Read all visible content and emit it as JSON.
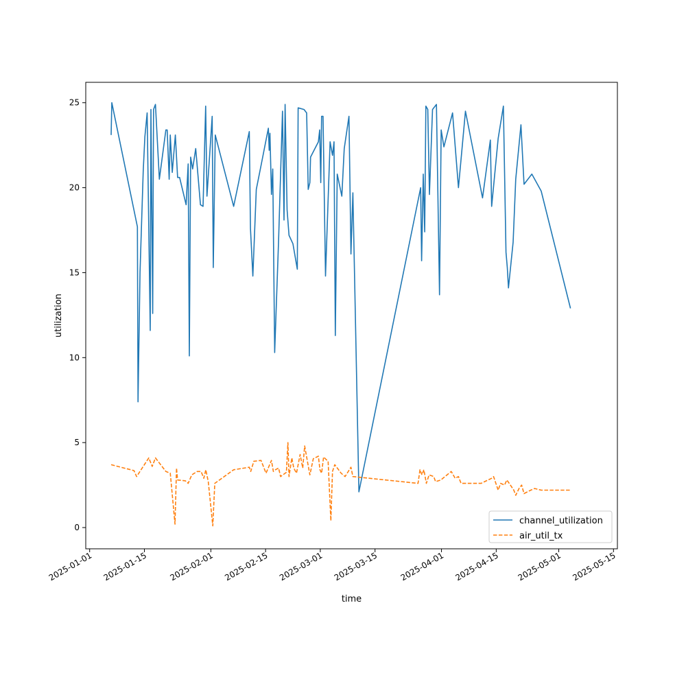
{
  "chart_data": {
    "type": "line",
    "title": "",
    "xlabel": "time",
    "ylabel": "utilization",
    "x_range": [
      "2024-12-31",
      "2025-05-16"
    ],
    "ylim": [
      -1.25,
      26.2
    ],
    "grid": false,
    "legend_position": "lower-right",
    "x_ticks": [
      "2025-01-01",
      "2025-01-15",
      "2025-02-01",
      "2025-02-15",
      "2025-03-01",
      "2025-03-15",
      "2025-04-01",
      "2025-04-15",
      "2025-05-01",
      "2025-05-15"
    ],
    "y_ticks": [
      0,
      5,
      10,
      15,
      20,
      25
    ],
    "series": [
      {
        "name": "channel_utilization",
        "color": "#1f77b4",
        "style": "solid",
        "points": [
          [
            "2025-01-06T12:00",
            23.1
          ],
          [
            "2025-01-06T16:00",
            25.0
          ],
          [
            "2025-01-13T05:00",
            17.7
          ],
          [
            "2025-01-13T09:00",
            7.4
          ],
          [
            "2025-01-13T21:00",
            15.0
          ],
          [
            "2025-01-14T17:00",
            21.0
          ],
          [
            "2025-01-15T03:00",
            23.0
          ],
          [
            "2025-01-15T17:00",
            24.4
          ],
          [
            "2025-01-16T12:00",
            11.6
          ],
          [
            "2025-01-16T16:00",
            24.6
          ],
          [
            "2025-01-17T03:00",
            12.6
          ],
          [
            "2025-01-17T08:00",
            24.6
          ],
          [
            "2025-01-17T20:00",
            24.9
          ],
          [
            "2025-01-18T20:00",
            20.5
          ],
          [
            "2025-01-20T12:00",
            23.4
          ],
          [
            "2025-01-20T20:00",
            23.4
          ],
          [
            "2025-01-21T08:00",
            20.5
          ],
          [
            "2025-01-21T15:00",
            23.1
          ],
          [
            "2025-01-22T03:00",
            20.9
          ],
          [
            "2025-01-22T22:00",
            23.1
          ],
          [
            "2025-01-23T12:00",
            20.6
          ],
          [
            "2025-01-24T00:00",
            20.6
          ],
          [
            "2025-01-25T16:00",
            19.0
          ],
          [
            "2025-01-26T05:00",
            21.4
          ],
          [
            "2025-01-26T12:00",
            10.1
          ],
          [
            "2025-01-26T20:00",
            21.8
          ],
          [
            "2025-01-27T08:00",
            21.1
          ],
          [
            "2025-01-28T03:00",
            22.3
          ],
          [
            "2025-01-29T08:00",
            19.0
          ],
          [
            "2025-01-30T00:00",
            18.9
          ],
          [
            "2025-01-30T16:00",
            24.8
          ],
          [
            "2025-01-31T00:00",
            19.5
          ],
          [
            "2025-02-01T08:00",
            24.2
          ],
          [
            "2025-02-01T15:00",
            15.3
          ],
          [
            "2025-02-02T03:00",
            23.1
          ],
          [
            "2025-02-06T20:00",
            18.9
          ],
          [
            "2025-02-10T20:00",
            23.3
          ],
          [
            "2025-02-11T03:00",
            17.6
          ],
          [
            "2025-02-11T18:00",
            14.8
          ],
          [
            "2025-02-12T15:00",
            19.9
          ],
          [
            "2025-02-13T22:00",
            21.4
          ],
          [
            "2025-02-15T17:00",
            23.5
          ],
          [
            "2025-02-15T22:00",
            22.2
          ],
          [
            "2025-02-16T03:00",
            23.2
          ],
          [
            "2025-02-16T12:00",
            19.6
          ],
          [
            "2025-02-16T20:00",
            21.1
          ],
          [
            "2025-02-17T08:00",
            10.3
          ],
          [
            "2025-02-18T08:00",
            16.9
          ],
          [
            "2025-02-19T08:00",
            24.5
          ],
          [
            "2025-02-19T17:00",
            18.1
          ],
          [
            "2025-02-20T00:00",
            24.9
          ],
          [
            "2025-02-20T12:00",
            18.7
          ],
          [
            "2025-02-21T00:00",
            17.2
          ],
          [
            "2025-02-22T00:00",
            16.7
          ],
          [
            "2025-02-23T03:00",
            15.2
          ],
          [
            "2025-02-23T08:00",
            24.7
          ],
          [
            "2025-02-24T20:00",
            24.6
          ],
          [
            "2025-02-25T12:00",
            24.4
          ],
          [
            "2025-02-25T22:00",
            19.9
          ],
          [
            "2025-02-26T08:00",
            20.3
          ],
          [
            "2025-02-26T12:00",
            21.8
          ],
          [
            "2025-02-28T12:00",
            22.7
          ],
          [
            "2025-02-28T20:00",
            23.4
          ],
          [
            "2025-03-01T03:00",
            20.3
          ],
          [
            "2025-03-01T08:00",
            24.2
          ],
          [
            "2025-03-01T17:00",
            24.2
          ],
          [
            "2025-03-02T08:00",
            14.8
          ],
          [
            "2025-03-03T12:00",
            22.7
          ],
          [
            "2025-03-04T03:00",
            21.9
          ],
          [
            "2025-03-04T12:00",
            22.7
          ],
          [
            "2025-03-04T20:00",
            11.3
          ],
          [
            "2025-03-05T08:00",
            20.8
          ],
          [
            "2025-03-06T12:00",
            19.5
          ],
          [
            "2025-03-07T03:00",
            22.3
          ],
          [
            "2025-03-08T08:00",
            24.2
          ],
          [
            "2025-03-08T20:00",
            16.1
          ],
          [
            "2025-03-09T08:00",
            19.7
          ],
          [
            "2025-03-10T21:00",
            2.1
          ],
          [
            "2025-03-26T16:00",
            20.0
          ],
          [
            "2025-03-26T22:00",
            15.7
          ],
          [
            "2025-03-27T08:00",
            20.8
          ],
          [
            "2025-03-27T17:00",
            17.4
          ],
          [
            "2025-03-28T00:00",
            24.8
          ],
          [
            "2025-03-28T12:00",
            24.6
          ],
          [
            "2025-03-28T22:00",
            19.6
          ],
          [
            "2025-03-29T17:00",
            24.6
          ],
          [
            "2025-03-30T17:00",
            24.9
          ],
          [
            "2025-03-31T12:00",
            13.7
          ],
          [
            "2025-03-31T22:00",
            23.4
          ],
          [
            "2025-04-01T15:00",
            22.4
          ],
          [
            "2025-04-03T20:00",
            24.4
          ],
          [
            "2025-04-05T08:00",
            20.0
          ],
          [
            "2025-04-07T03:00",
            24.5
          ],
          [
            "2025-04-11T12:00",
            19.4
          ],
          [
            "2025-04-13T12:00",
            22.8
          ],
          [
            "2025-04-13T20:00",
            18.9
          ],
          [
            "2025-04-15T12:00",
            22.9
          ],
          [
            "2025-04-16T20:00",
            24.8
          ],
          [
            "2025-04-17T12:00",
            16.2
          ],
          [
            "2025-04-17T20:00",
            15.3
          ],
          [
            "2025-04-18T03:00",
            14.1
          ],
          [
            "2025-04-19T08:00",
            16.8
          ],
          [
            "2025-04-20T00:00",
            20.5
          ],
          [
            "2025-04-21T08:00",
            23.7
          ],
          [
            "2025-04-22T03:00",
            20.2
          ],
          [
            "2025-04-24T03:00",
            20.8
          ],
          [
            "2025-04-26T12:00",
            19.8
          ],
          [
            "2025-05-04T00:00",
            12.9
          ]
        ]
      },
      {
        "name": "air_util_tx",
        "color": "#ff7f0e",
        "style": "dashed",
        "points": [
          [
            "2025-01-06T12:00",
            3.7
          ],
          [
            "2025-01-12T08:00",
            3.35
          ],
          [
            "2025-01-13T00:00",
            3.0
          ],
          [
            "2025-01-16T03:00",
            4.1
          ],
          [
            "2025-01-17T00:00",
            3.6
          ],
          [
            "2025-01-17T20:00",
            4.1
          ],
          [
            "2025-01-20T12:00",
            3.3
          ],
          [
            "2025-01-21T15:00",
            3.2
          ],
          [
            "2025-01-22T20:00",
            0.2
          ],
          [
            "2025-01-23T05:00",
            3.5
          ],
          [
            "2025-01-23T12:00",
            2.8
          ],
          [
            "2025-01-25T12:00",
            2.75
          ],
          [
            "2025-01-26T05:00",
            2.6
          ],
          [
            "2025-01-27T03:00",
            3.1
          ],
          [
            "2025-01-28T12:00",
            3.3
          ],
          [
            "2025-01-29T12:00",
            3.3
          ],
          [
            "2025-01-30T05:00",
            2.9
          ],
          [
            "2025-01-30T17:00",
            3.4
          ],
          [
            "2025-01-31T08:00",
            2.7
          ],
          [
            "2025-02-01T12:00",
            0.1
          ],
          [
            "2025-02-02T00:00",
            2.6
          ],
          [
            "2025-02-06T20:00",
            3.4
          ],
          [
            "2025-02-10T20:00",
            3.55
          ],
          [
            "2025-02-11T05:00",
            3.3
          ],
          [
            "2025-02-12T00:00",
            3.9
          ],
          [
            "2025-02-13T20:00",
            3.95
          ],
          [
            "2025-02-15T03:00",
            3.2
          ],
          [
            "2025-02-16T12:00",
            3.95
          ],
          [
            "2025-02-17T00:00",
            3.3
          ],
          [
            "2025-02-17T12:00",
            3.4
          ],
          [
            "2025-02-18T08:00",
            3.5
          ],
          [
            "2025-02-18T20:00",
            3.0
          ],
          [
            "2025-02-20T08:00",
            3.25
          ],
          [
            "2025-02-20T17:00",
            5.0
          ],
          [
            "2025-02-21T00:00",
            3.0
          ],
          [
            "2025-02-21T17:00",
            4.1
          ],
          [
            "2025-02-22T05:00",
            3.5
          ],
          [
            "2025-02-22T22:00",
            3.2
          ],
          [
            "2025-02-23T20:00",
            4.3
          ],
          [
            "2025-02-24T12:00",
            3.5
          ],
          [
            "2025-02-25T00:00",
            4.8
          ],
          [
            "2025-02-26T08:00",
            3.1
          ],
          [
            "2025-02-27T05:00",
            4.05
          ],
          [
            "2025-02-28T12:00",
            4.2
          ],
          [
            "2025-02-28T22:00",
            3.4
          ],
          [
            "2025-03-01T08:00",
            3.2
          ],
          [
            "2025-03-01T20:00",
            4.15
          ],
          [
            "2025-03-02T12:00",
            4.0
          ],
          [
            "2025-03-03T00:00",
            3.9
          ],
          [
            "2025-03-03T17:00",
            0.4
          ],
          [
            "2025-03-04T03:00",
            3.3
          ],
          [
            "2025-03-04T17:00",
            3.7
          ],
          [
            "2025-03-06T08:00",
            3.2
          ],
          [
            "2025-03-07T08:00",
            3.0
          ],
          [
            "2025-03-08T20:00",
            3.55
          ],
          [
            "2025-03-09T08:00",
            3.0
          ],
          [
            "2025-03-26T00:00",
            2.6
          ],
          [
            "2025-03-26T12:00",
            3.4
          ],
          [
            "2025-03-27T00:00",
            3.1
          ],
          [
            "2025-03-27T12:00",
            3.4
          ],
          [
            "2025-03-28T03:00",
            2.6
          ],
          [
            "2025-03-28T20:00",
            3.1
          ],
          [
            "2025-03-30T00:00",
            3.0
          ],
          [
            "2025-03-30T12:00",
            2.7
          ],
          [
            "2025-03-31T20:00",
            2.8
          ],
          [
            "2025-04-03T12:00",
            3.3
          ],
          [
            "2025-04-04T12:00",
            2.9
          ],
          [
            "2025-04-05T08:00",
            3.0
          ],
          [
            "2025-04-06T00:00",
            2.6
          ],
          [
            "2025-04-11T03:00",
            2.6
          ],
          [
            "2025-04-13T20:00",
            2.9
          ],
          [
            "2025-04-14T08:00",
            3.0
          ],
          [
            "2025-04-15T12:00",
            2.2
          ],
          [
            "2025-04-16T03:00",
            2.6
          ],
          [
            "2025-04-17T03:00",
            2.5
          ],
          [
            "2025-04-17T17:00",
            2.8
          ],
          [
            "2025-04-18T08:00",
            2.6
          ],
          [
            "2025-04-19T12:00",
            2.2
          ],
          [
            "2025-04-20T00:00",
            1.9
          ],
          [
            "2025-04-20T20:00",
            2.3
          ],
          [
            "2025-04-21T12:00",
            2.5
          ],
          [
            "2025-04-22T03:00",
            2.0
          ],
          [
            "2025-04-23T20:00",
            2.2
          ],
          [
            "2025-04-24T20:00",
            2.3
          ],
          [
            "2025-04-26T12:00",
            2.2
          ],
          [
            "2025-05-04T00:00",
            2.2
          ]
        ]
      }
    ]
  }
}
